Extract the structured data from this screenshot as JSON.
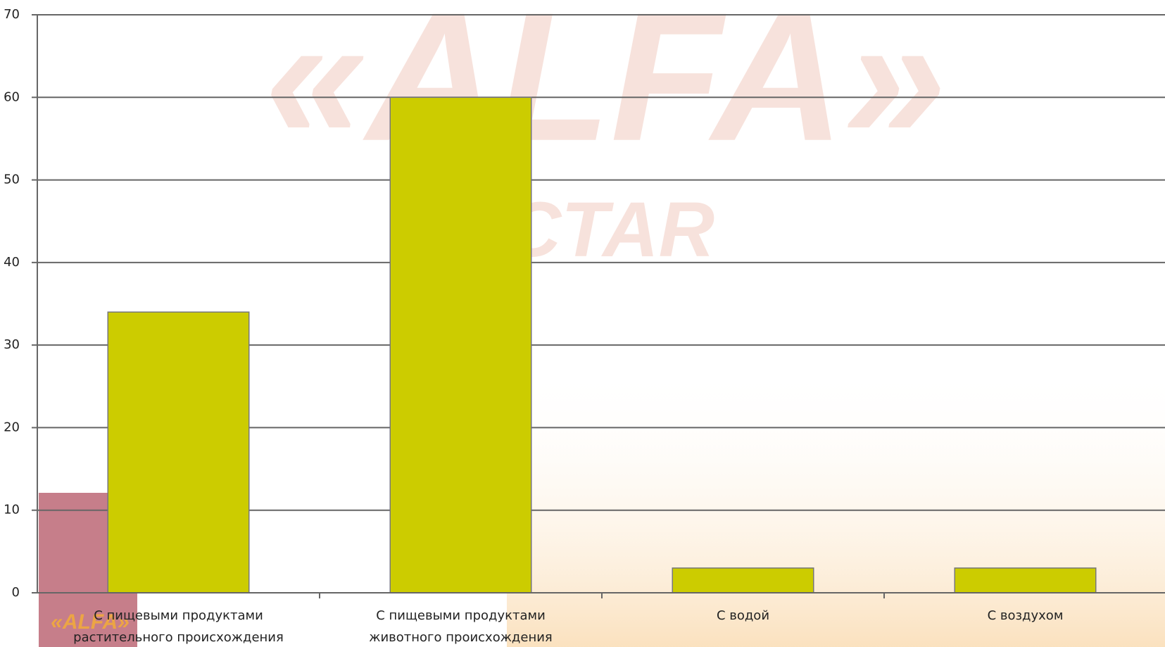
{
  "watermark": [
    "«ALFA»",
    "NECTAR"
  ],
  "chart_data": {
    "type": "bar",
    "categories": [
      [
        "С пищевыми продуктами",
        "растительного происхождения"
      ],
      [
        "С пищевыми продуктами",
        "животного происхождения"
      ],
      [
        "С водой"
      ],
      [
        "С воздухом"
      ]
    ],
    "values": [
      34,
      60,
      3,
      3
    ],
    "color": "#cccc00",
    "ylim": [
      0,
      70
    ],
    "yticks": [
      0,
      10,
      20,
      30,
      40,
      50,
      60,
      70
    ],
    "grid": true
  }
}
